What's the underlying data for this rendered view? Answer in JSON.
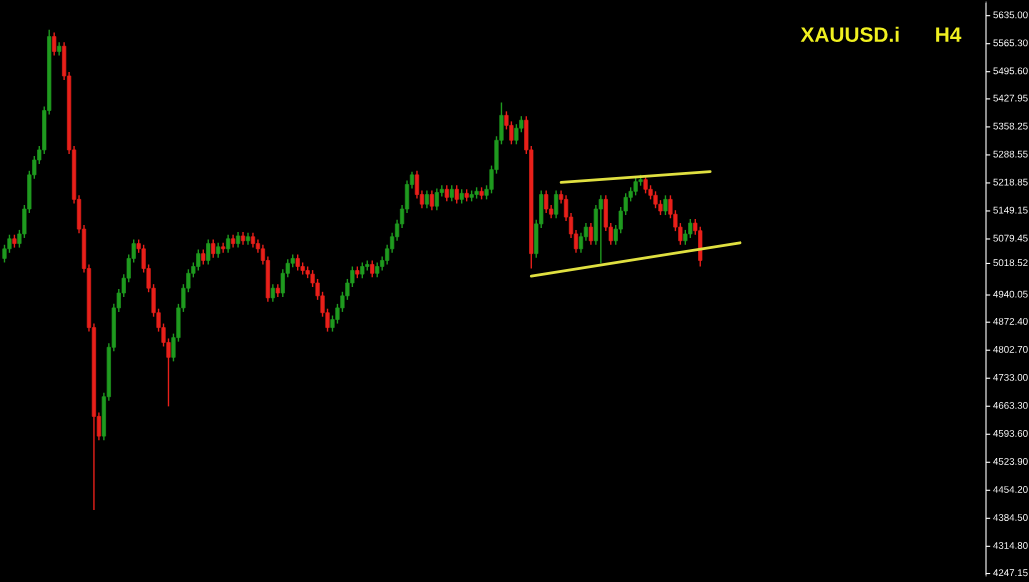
{
  "chart_data": {
    "type": "candlestick",
    "title": "XAUUSD.i      H4",
    "categories": [
      null,
      null,
      null,
      null,
      null,
      null,
      null,
      null,
      null,
      null,
      null,
      null,
      null,
      null,
      null,
      null,
      null,
      null,
      null,
      null,
      null,
      null,
      null,
      null,
      null,
      null,
      null,
      null,
      null,
      null,
      null,
      null,
      null,
      null,
      null,
      null,
      null,
      null,
      null,
      null,
      null,
      null,
      null,
      null,
      null,
      null,
      null,
      null,
      null,
      null,
      null,
      null,
      null,
      null,
      null,
      null,
      null,
      null,
      null,
      null,
      null,
      null,
      null,
      null,
      null,
      null,
      null,
      null,
      null,
      null,
      null,
      null,
      null,
      null,
      null,
      null,
      null,
      null,
      null,
      null,
      null,
      null,
      null,
      null,
      null,
      null,
      null,
      null,
      null,
      null,
      null,
      null,
      null,
      null,
      null,
      null,
      null,
      null,
      null,
      null,
      null,
      null,
      null,
      null,
      null,
      null,
      null,
      null,
      null,
      null,
      null,
      null,
      null,
      null,
      null,
      null,
      null,
      null,
      null,
      null,
      null,
      null,
      null,
      null,
      null,
      null,
      null,
      null,
      null,
      null,
      null,
      null,
      null,
      null,
      null,
      null,
      null,
      null,
      null,
      null,
      null,
      null,
      null,
      null,
      null,
      null,
      null,
      null,
      null,
      null,
      null,
      null,
      null,
      null,
      null,
      null,
      null,
      null,
      null,
      null,
      null,
      null,
      null,
      null,
      null,
      null,
      null,
      null,
      null,
      null,
      null,
      null,
      null,
      null,
      null,
      null,
      null,
      null,
      null,
      null,
      null,
      null,
      null,
      null,
      null,
      null,
      null,
      null,
      null,
      null,
      null,
      null,
      null,
      null,
      null,
      null,
      null,
      null
    ],
    "ohlc": [
      [
        5031,
        5065,
        5021,
        5055
      ],
      [
        5055,
        5090,
        5045,
        5080
      ],
      [
        5080,
        5090,
        5058,
        5068
      ],
      [
        5068,
        5102,
        5058,
        5092
      ],
      [
        5092,
        5164,
        5082,
        5154
      ],
      [
        5154,
        5249,
        5144,
        5239
      ],
      [
        5239,
        5286,
        5229,
        5276
      ],
      [
        5276,
        5311,
        5266,
        5301
      ],
      [
        5301,
        5409,
        5291,
        5399
      ],
      [
        5399,
        5600,
        5389,
        5583
      ],
      [
        5583,
        5593,
        5536,
        5546
      ],
      [
        5546,
        5569,
        5536,
        5559
      ],
      [
        5559,
        5569,
        5475,
        5485
      ],
      [
        5485,
        5495,
        5291,
        5301
      ],
      [
        5301,
        5311,
        5168,
        5178
      ],
      [
        5178,
        5188,
        5094,
        5104
      ],
      [
        5104,
        5114,
        4996,
        5006
      ],
      [
        5006,
        5016,
        4849,
        4859
      ],
      [
        4859,
        4869,
        4405,
        4638
      ],
      [
        4638,
        4648,
        4579,
        4589
      ],
      [
        4589,
        4697,
        4579,
        4687
      ],
      [
        4687,
        4820,
        4677,
        4810
      ],
      [
        4810,
        4918,
        4800,
        4908
      ],
      [
        4908,
        4955,
        4898,
        4945
      ],
      [
        4945,
        4992,
        4935,
        4982
      ],
      [
        4982,
        5041,
        4972,
        5031
      ],
      [
        5031,
        5078,
        5021,
        5068
      ],
      [
        5068,
        5078,
        5045,
        5055
      ],
      [
        5055,
        5065,
        4996,
        5006
      ],
      [
        5006,
        5016,
        4947,
        4957
      ],
      [
        4957,
        4967,
        4886,
        4896
      ],
      [
        4896,
        4906,
        4849,
        4859
      ],
      [
        4859,
        4869,
        4812,
        4822
      ],
      [
        4822,
        4832,
        4663,
        4785
      ],
      [
        4785,
        4844,
        4775,
        4834
      ],
      [
        4834,
        4918,
        4824,
        4908
      ],
      [
        4908,
        4967,
        4898,
        4957
      ],
      [
        4957,
        5004,
        4947,
        4994
      ],
      [
        4994,
        5021,
        4984,
        5011
      ],
      [
        5011,
        5053,
        5001,
        5043
      ],
      [
        5043,
        5053,
        5016,
        5026
      ],
      [
        5026,
        5078,
        5016,
        5068
      ],
      [
        5068,
        5078,
        5033,
        5043
      ],
      [
        5043,
        5070,
        5033,
        5060
      ],
      [
        5060,
        5070,
        5045,
        5055
      ],
      [
        5055,
        5090,
        5045,
        5080
      ],
      [
        5080,
        5090,
        5058,
        5068
      ],
      [
        5068,
        5097,
        5058,
        5087
      ],
      [
        5087,
        5097,
        5065,
        5075
      ],
      [
        5075,
        5095,
        5065,
        5085
      ],
      [
        5085,
        5095,
        5058,
        5068
      ],
      [
        5068,
        5078,
        5045,
        5055
      ],
      [
        5055,
        5065,
        5016,
        5026
      ],
      [
        5026,
        5036,
        4923,
        4933
      ],
      [
        4933,
        4967,
        4923,
        4957
      ],
      [
        4957,
        4967,
        4935,
        4945
      ],
      [
        4945,
        5004,
        4935,
        4994
      ],
      [
        4994,
        5029,
        4984,
        5019
      ],
      [
        5019,
        5041,
        5009,
        5031
      ],
      [
        5031,
        5041,
        5001,
        5011
      ],
      [
        5011,
        5021,
        4991,
        5001
      ],
      [
        5001,
        5011,
        4982,
        4992
      ],
      [
        4992,
        5002,
        4960,
        4970
      ],
      [
        4970,
        4980,
        4928,
        4938
      ],
      [
        4938,
        4948,
        4886,
        4896
      ],
      [
        4896,
        4906,
        4849,
        4859
      ],
      [
        4859,
        4889,
        4849,
        4879
      ],
      [
        4879,
        4918,
        4869,
        4908
      ],
      [
        4908,
        4948,
        4898,
        4938
      ],
      [
        4938,
        4980,
        4928,
        4970
      ],
      [
        4970,
        5011,
        4960,
        5001
      ],
      [
        5001,
        5011,
        4982,
        4992
      ],
      [
        4992,
        5021,
        4982,
        5011
      ],
      [
        5011,
        5026,
        5001,
        5016
      ],
      [
        5016,
        5026,
        4984,
        4994
      ],
      [
        4994,
        5021,
        4984,
        5011
      ],
      [
        5011,
        5036,
        5001,
        5026
      ],
      [
        5026,
        5065,
        5016,
        5055
      ],
      [
        5055,
        5095,
        5045,
        5085
      ],
      [
        5085,
        5127,
        5075,
        5117
      ],
      [
        5117,
        5164,
        5107,
        5154
      ],
      [
        5154,
        5225,
        5144,
        5215
      ],
      [
        5215,
        5247,
        5205,
        5239
      ],
      [
        5239,
        5249,
        5180,
        5190
      ],
      [
        5190,
        5200,
        5156,
        5166
      ],
      [
        5166,
        5200,
        5156,
        5190
      ],
      [
        5190,
        5200,
        5151,
        5161
      ],
      [
        5161,
        5205,
        5151,
        5195
      ],
      [
        5195,
        5213,
        5185,
        5203
      ],
      [
        5203,
        5213,
        5173,
        5183
      ],
      [
        5183,
        5213,
        5173,
        5203
      ],
      [
        5203,
        5213,
        5168,
        5178
      ],
      [
        5178,
        5203,
        5168,
        5193
      ],
      [
        5193,
        5203,
        5173,
        5183
      ],
      [
        5183,
        5200,
        5173,
        5190
      ],
      [
        5190,
        5208,
        5180,
        5198
      ],
      [
        5198,
        5208,
        5178,
        5188
      ],
      [
        5188,
        5213,
        5178,
        5203
      ],
      [
        5203,
        5262,
        5193,
        5252
      ],
      [
        5252,
        5335,
        5242,
        5325
      ],
      [
        5325,
        5419,
        5315,
        5387
      ],
      [
        5387,
        5397,
        5352,
        5362
      ],
      [
        5362,
        5372,
        5315,
        5325
      ],
      [
        5325,
        5365,
        5315,
        5355
      ],
      [
        5355,
        5385,
        5345,
        5375
      ],
      [
        5375,
        5385,
        5291,
        5301
      ],
      [
        5301,
        5311,
        5006,
        5043
      ],
      [
        5043,
        5127,
        5033,
        5117
      ],
      [
        5117,
        5200,
        5107,
        5190
      ],
      [
        5190,
        5200,
        5144,
        5154
      ],
      [
        5154,
        5164,
        5131,
        5141
      ],
      [
        5141,
        5200,
        5131,
        5190
      ],
      [
        5190,
        5200,
        5168,
        5178
      ],
      [
        5178,
        5188,
        5124,
        5134
      ],
      [
        5134,
        5144,
        5082,
        5092
      ],
      [
        5092,
        5102,
        5045,
        5055
      ],
      [
        5055,
        5095,
        5045,
        5085
      ],
      [
        5085,
        5119,
        5075,
        5109
      ],
      [
        5109,
        5119,
        5065,
        5075
      ],
      [
        5075,
        5164,
        5065,
        5154
      ],
      [
        5154,
        5188,
        5019,
        5178
      ],
      [
        5178,
        5188,
        5099,
        5109
      ],
      [
        5109,
        5119,
        5065,
        5075
      ],
      [
        5075,
        5114,
        5065,
        5104
      ],
      [
        5104,
        5159,
        5094,
        5149
      ],
      [
        5149,
        5193,
        5139,
        5183
      ],
      [
        5183,
        5208,
        5173,
        5198
      ],
      [
        5198,
        5232,
        5188,
        5222
      ],
      [
        5222,
        5239,
        5212,
        5227
      ],
      [
        5227,
        5237,
        5193,
        5203
      ],
      [
        5203,
        5213,
        5178,
        5188
      ],
      [
        5188,
        5198,
        5156,
        5166
      ],
      [
        5166,
        5176,
        5139,
        5149
      ],
      [
        5149,
        5188,
        5139,
        5178
      ],
      [
        5178,
        5188,
        5131,
        5141
      ],
      [
        5141,
        5151,
        5099,
        5109
      ],
      [
        5109,
        5119,
        5065,
        5075
      ],
      [
        5075,
        5102,
        5065,
        5092
      ],
      [
        5092,
        5129,
        5082,
        5119
      ],
      [
        5119,
        5129,
        5090,
        5100
      ],
      [
        5100,
        5110,
        5011,
        5026
      ],
      null,
      null,
      null,
      null,
      null,
      null,
      null,
      null,
      null,
      null,
      null,
      null,
      null,
      null,
      null,
      null,
      null,
      null,
      null,
      null,
      null,
      null,
      null,
      null,
      null,
      null,
      null,
      null,
      null,
      null,
      null,
      null,
      null,
      null,
      null,
      null,
      null,
      null,
      null,
      null,
      null,
      null,
      null,
      null,
      null,
      null,
      null,
      null,
      null,
      null,
      null,
      null,
      null,
      null,
      null,
      null,
      null
    ],
    "series": [
      {
        "type": "line",
        "color": "#e0e040",
        "values": [
          null,
          null,
          null,
          null,
          null,
          null,
          null,
          null,
          null,
          null,
          null,
          null,
          null,
          null,
          null,
          null,
          null,
          null,
          null,
          null,
          null,
          null,
          null,
          null,
          null,
          null,
          null,
          null,
          null,
          null,
          null,
          null,
          null,
          null,
          null,
          null,
          null,
          null,
          null,
          null,
          null,
          null,
          null,
          null,
          null,
          null,
          null,
          null,
          null,
          null,
          null,
          null,
          null,
          null,
          null,
          null,
          null,
          null,
          null,
          null,
          null,
          null,
          null,
          null,
          null,
          null,
          null,
          null,
          null,
          null,
          null,
          null,
          null,
          null,
          null,
          null,
          null,
          null,
          null,
          null,
          null,
          null,
          null,
          null,
          null,
          null,
          null,
          null,
          null,
          null,
          null,
          null,
          null,
          null,
          null,
          null,
          null,
          null,
          null,
          null,
          null,
          null,
          null,
          null,
          null,
          null,
          null,
          null,
          null,
          null,
          null,
          null,
          5220,
          null,
          null,
          null,
          null,
          null,
          null,
          null,
          null,
          null,
          null,
          null,
          null,
          null,
          null,
          null,
          null,
          null,
          null,
          null,
          null,
          null,
          null,
          null,
          null,
          null,
          null,
          null,
          null,
          null,
          5247,
          null,
          null,
          null,
          null,
          null,
          null,
          null,
          null,
          null,
          null,
          null,
          null,
          null,
          null,
          null,
          null,
          null,
          null,
          null,
          null,
          null,
          null,
          null,
          null,
          null,
          null,
          null,
          null,
          null,
          null,
          null,
          null,
          null,
          null,
          null,
          null,
          null,
          null,
          null,
          null,
          null,
          null,
          null,
          null,
          null,
          null,
          null,
          null,
          null,
          null,
          null,
          null,
          null,
          null,
          null
        ]
      },
      {
        "type": "line",
        "color": "#e0e040",
        "values": [
          null,
          null,
          null,
          null,
          null,
          null,
          null,
          null,
          null,
          null,
          null,
          null,
          null,
          null,
          null,
          null,
          null,
          null,
          null,
          null,
          null,
          null,
          null,
          null,
          null,
          null,
          null,
          null,
          null,
          null,
          null,
          null,
          null,
          null,
          null,
          null,
          null,
          null,
          null,
          null,
          null,
          null,
          null,
          null,
          null,
          null,
          null,
          null,
          null,
          null,
          null,
          null,
          null,
          null,
          null,
          null,
          null,
          null,
          null,
          null,
          null,
          null,
          null,
          null,
          null,
          null,
          null,
          null,
          null,
          null,
          null,
          null,
          null,
          null,
          null,
          null,
          null,
          null,
          null,
          null,
          null,
          null,
          null,
          null,
          null,
          null,
          null,
          null,
          null,
          null,
          null,
          null,
          null,
          null,
          null,
          null,
          null,
          null,
          null,
          null,
          null,
          null,
          null,
          null,
          null,
          null,
          4987,
          null,
          null,
          null,
          null,
          null,
          null,
          null,
          null,
          null,
          null,
          null,
          null,
          null,
          null,
          null,
          null,
          null,
          null,
          null,
          null,
          null,
          null,
          null,
          null,
          null,
          null,
          null,
          null,
          null,
          null,
          null,
          null,
          null,
          null,
          null,
          null,
          null,
          null,
          null,
          null,
          null,
          5070,
          null,
          null,
          null,
          null,
          null,
          null,
          null,
          null,
          null,
          null,
          null,
          null,
          null,
          null,
          null,
          null,
          null,
          null,
          null,
          null,
          null,
          null,
          null,
          null,
          null,
          null,
          null,
          null,
          null,
          null,
          null,
          null,
          null,
          null,
          null,
          null,
          null,
          null,
          null,
          null,
          null,
          null,
          null,
          null,
          null,
          null,
          null,
          null,
          null
        ]
      }
    ],
    "ylim": [
      4241,
      5669
    ],
    "yticks": [
      {
        "value": 5635,
        "label": "5635.00"
      },
      {
        "value": 5565.3,
        "label": "5565.30"
      },
      {
        "value": 5495.6,
        "label": "5495.60"
      },
      {
        "value": 5427.95,
        "label": "5427.95"
      },
      {
        "value": 5358.25,
        "label": "5358.25"
      },
      {
        "value": 5288.55,
        "label": "5288.55"
      },
      {
        "value": 5218.85,
        "label": "5218.85"
      },
      {
        "value": 5149.15,
        "label": "5149.15"
      },
      {
        "value": 5079.45,
        "label": "5079.45"
      },
      {
        "value": 5018.52,
        "label": "5018.52"
      },
      {
        "value": 4940.05,
        "label": "4940.05"
      },
      {
        "value": 4872.4,
        "label": "4872.40"
      },
      {
        "value": 4802.7,
        "label": "4802.70"
      },
      {
        "value": 4733,
        "label": "4733.00"
      },
      {
        "value": 4663.3,
        "label": "4663.30"
      },
      {
        "value": 4593.6,
        "label": "4593.60"
      },
      {
        "value": 4523.9,
        "label": "4523.90"
      },
      {
        "value": 4454.2,
        "label": "4454.20"
      },
      {
        "value": 4384.5,
        "label": "4384.50"
      },
      {
        "value": 4314.8,
        "label": "4314.80"
      },
      {
        "value": 4247.15,
        "label": "4247.15"
      }
    ],
    "tick_labels": "y"
  }
}
